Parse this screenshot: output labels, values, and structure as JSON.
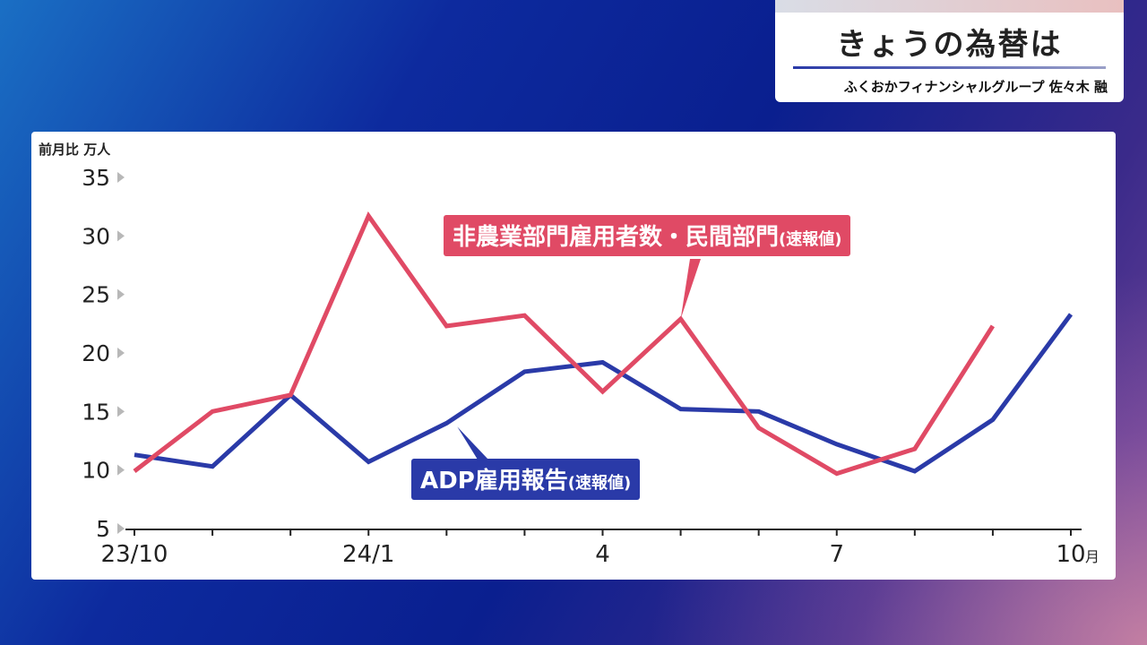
{
  "header": {
    "title": "きょうの為替は",
    "subtitle": "ふくおかフィナンシャルグループ 佐々木 融"
  },
  "chart_data": {
    "type": "line",
    "ylabel": "前月比 万人",
    "ylim": [
      5,
      35
    ],
    "yticks": [
      5,
      10,
      15,
      20,
      25,
      30,
      35
    ],
    "x": [
      "23/10",
      "23/11",
      "23/12",
      "24/1",
      "24/2",
      "24/3",
      "24/4",
      "24/5",
      "24/6",
      "24/7",
      "24/8",
      "24/9",
      "24/10"
    ],
    "xtick_labels": [
      {
        "index": 0,
        "label": "23/10"
      },
      {
        "index": 3,
        "label": "24/1"
      },
      {
        "index": 6,
        "label": "4"
      },
      {
        "index": 9,
        "label": "7"
      },
      {
        "index": 12,
        "label": "10"
      }
    ],
    "xunit": "月",
    "series": [
      {
        "name": "非農業部門雇用者数・民間部門",
        "name_suffix": "(速報値)",
        "color": "#e04a65",
        "values": [
          9.9,
          15.0,
          16.4,
          31.7,
          22.3,
          23.2,
          16.7,
          22.9,
          13.6,
          9.7,
          11.8,
          22.3,
          null
        ]
      },
      {
        "name": "ADP雇用報告",
        "name_suffix": "(速報値)",
        "color": "#2a3aa8",
        "values": [
          11.3,
          10.3,
          16.4,
          10.7,
          14.0,
          18.4,
          19.2,
          15.2,
          15.0,
          12.2,
          9.9,
          14.3,
          23.3
        ]
      }
    ],
    "grid": false,
    "legend": "inline-labels"
  }
}
